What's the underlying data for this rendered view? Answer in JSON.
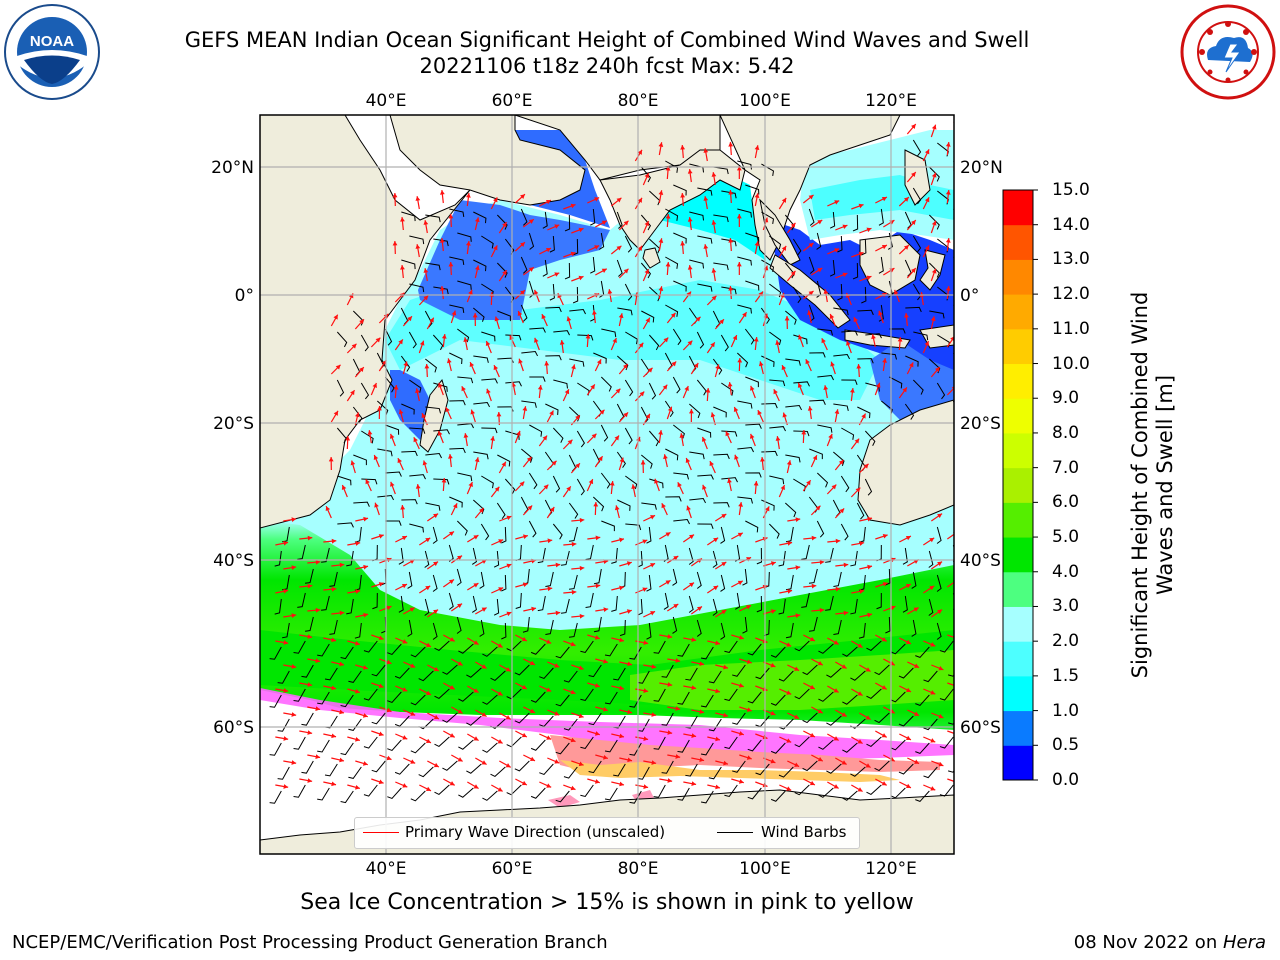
{
  "header": {
    "title_line1": "GEFS MEAN Indian Ocean Significant Height of Combined Wind Waves and Swell",
    "title_line2": "20221106 t18z 240h fcst   Max: 5.42"
  },
  "logos": {
    "noaa": {
      "text": "NOAA",
      "ring_text": "NATIONAL OCEANIC AND ATMOSPHERIC ADMINISTRATION · U.S. DEPARTMENT OF COMMERCE"
    },
    "nws": {
      "ring_text": "NATIONAL WEATHER SERVICE"
    }
  },
  "map": {
    "lon_labels": [
      "40°E",
      "60°E",
      "80°E",
      "100°E",
      "120°E"
    ],
    "lat_labels": [
      "20°N",
      "0°",
      "20°S",
      "40°S",
      "60°S"
    ],
    "lon_range": [
      20,
      130
    ],
    "lat_range": [
      -73,
      28
    ],
    "land_color": "#efeddc",
    "sea_ice_colors": [
      "#ff66ff",
      "#ff9999",
      "#ffcc66"
    ],
    "legend": {
      "wave_label": "Primary Wave Direction (unscaled)",
      "wind_label": "Wind Barbs",
      "wave_color": "#ff0000",
      "wind_color": "#000000"
    }
  },
  "colorbar": {
    "title": "Significant Height of Combined Wind Waves and Swell [m]",
    "ticks": [
      "0.0",
      "0.5",
      "1.0",
      "1.5",
      "2.0",
      "3.0",
      "4.0",
      "5.0",
      "6.0",
      "7.0",
      "8.0",
      "9.0",
      "10.0",
      "11.0",
      "12.0",
      "13.0",
      "14.0",
      "15.0"
    ],
    "colors": [
      "#0000ff",
      "#0a7bff",
      "#00ffff",
      "#4dffff",
      "#a6ffff",
      "#4dff80",
      "#00e600",
      "#55ee00",
      "#aaf000",
      "#ccff00",
      "#eeff00",
      "#ffee00",
      "#ffcc00",
      "#ffaa00",
      "#ff8800",
      "#ff5500",
      "#ff0000"
    ]
  },
  "caption": "Sea Ice Concentration > 15% is shown in pink to yellow",
  "footer": {
    "left": "NCEP/EMC/Verification Post Processing Product Generation Branch",
    "right_prefix": "08 Nov 2022 on ",
    "right_host": "Hera"
  }
}
